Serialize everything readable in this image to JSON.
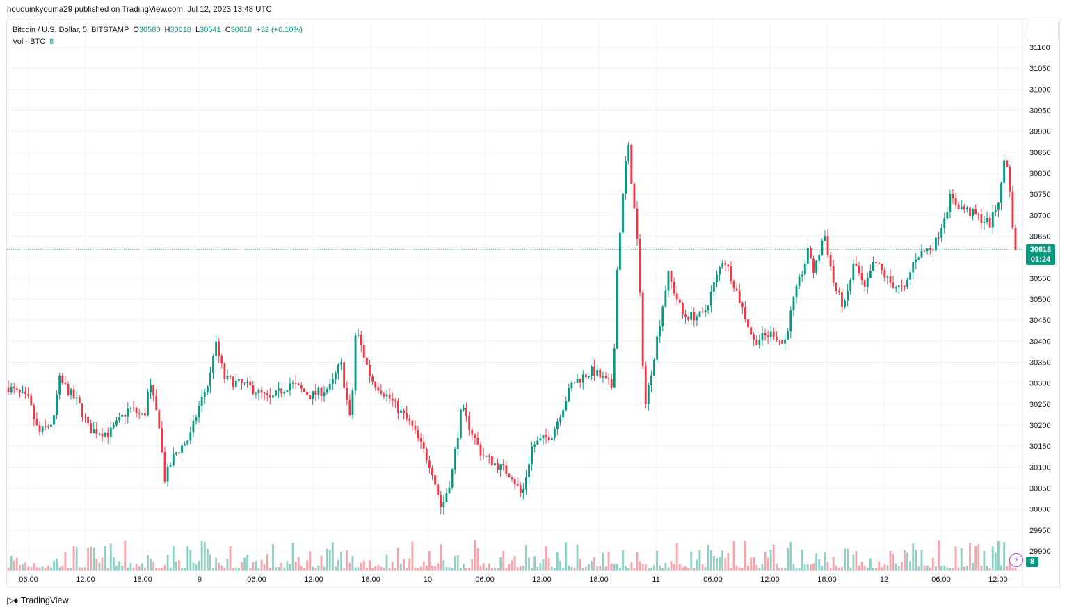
{
  "header": {
    "published_text": "hououinkyouma29 published on TradingView.com, Jul 12, 2023 13:48 UTC"
  },
  "legend": {
    "symbol": "Bitcoin / U.S. Dollar, 5, BITSTAMP",
    "open_label": "O",
    "open": "30580",
    "high_label": "H",
    "high": "30618",
    "low_label": "L",
    "low": "30541",
    "close_label": "C",
    "close": "30618",
    "change": "+32 (+0.10%)",
    "volume_label": "Vol · BTC",
    "volume": "8"
  },
  "price_tag": {
    "price": "30618",
    "countdown": "01:24"
  },
  "volume_tag": "8",
  "footer": {
    "brand": "TradingView",
    "icon": "tradingview-logo-icon"
  },
  "colors": {
    "up": "#089981",
    "down": "#f23645",
    "grid": "#f0f3fa",
    "text": "#131722"
  },
  "chart_data": {
    "type": "candlestick",
    "title": "Bitcoin / U.S. Dollar, 5, BITSTAMP",
    "y_ticks": [
      29900,
      29950,
      30000,
      30050,
      30100,
      30150,
      30200,
      30250,
      30300,
      30350,
      30400,
      30450,
      30500,
      30550,
      30600,
      30650,
      30700,
      30750,
      30800,
      30850,
      30900,
      30950,
      31000,
      31050,
      31100
    ],
    "ylim": [
      29865,
      31135
    ],
    "x_ticks": [
      "06:00",
      "12:00",
      "18:00",
      "9",
      "06:00",
      "12:00",
      "18:00",
      "10",
      "06:00",
      "12:00",
      "18:00",
      "11",
      "06:00",
      "12:00",
      "18:00",
      "12",
      "06:00",
      "12:00"
    ],
    "last_price": 30618,
    "price_path_estimate": [
      [
        0,
        30290
      ],
      [
        0.02,
        30260
      ],
      [
        0.03,
        30180
      ],
      [
        0.045,
        30210
      ],
      [
        0.05,
        30310
      ],
      [
        0.07,
        30250
      ],
      [
        0.08,
        30190
      ],
      [
        0.1,
        30180
      ],
      [
        0.12,
        30240
      ],
      [
        0.135,
        30220
      ],
      [
        0.14,
        30300
      ],
      [
        0.15,
        30200
      ],
      [
        0.155,
        30070
      ],
      [
        0.165,
        30130
      ],
      [
        0.18,
        30170
      ],
      [
        0.19,
        30250
      ],
      [
        0.2,
        30310
      ],
      [
        0.205,
        30400
      ],
      [
        0.215,
        30310
      ],
      [
        0.24,
        30290
      ],
      [
        0.26,
        30260
      ],
      [
        0.28,
        30300
      ],
      [
        0.3,
        30270
      ],
      [
        0.32,
        30290
      ],
      [
        0.33,
        30350
      ],
      [
        0.34,
        30200
      ],
      [
        0.345,
        30430
      ],
      [
        0.36,
        30310
      ],
      [
        0.38,
        30260
      ],
      [
        0.4,
        30200
      ],
      [
        0.41,
        30150
      ],
      [
        0.42,
        30100
      ],
      [
        0.43,
        30000
      ],
      [
        0.44,
        30080
      ],
      [
        0.45,
        30240
      ],
      [
        0.47,
        30130
      ],
      [
        0.5,
        30080
      ],
      [
        0.51,
        30030
      ],
      [
        0.52,
        30150
      ],
      [
        0.54,
        30180
      ],
      [
        0.56,
        30300
      ],
      [
        0.58,
        30330
      ],
      [
        0.6,
        30290
      ],
      [
        0.605,
        30600
      ],
      [
        0.615,
        30880
      ],
      [
        0.625,
        30620
      ],
      [
        0.632,
        30240
      ],
      [
        0.645,
        30420
      ],
      [
        0.655,
        30560
      ],
      [
        0.67,
        30460
      ],
      [
        0.69,
        30460
      ],
      [
        0.71,
        30600
      ],
      [
        0.72,
        30540
      ],
      [
        0.74,
        30400
      ],
      [
        0.76,
        30420
      ],
      [
        0.77,
        30390
      ],
      [
        0.78,
        30500
      ],
      [
        0.795,
        30620
      ],
      [
        0.8,
        30560
      ],
      [
        0.81,
        30660
      ],
      [
        0.82,
        30530
      ],
      [
        0.83,
        30480
      ],
      [
        0.84,
        30590
      ],
      [
        0.85,
        30520
      ],
      [
        0.86,
        30590
      ],
      [
        0.875,
        30540
      ],
      [
        0.89,
        30520
      ],
      [
        0.9,
        30600
      ],
      [
        0.92,
        30630
      ],
      [
        0.935,
        30740
      ],
      [
        0.945,
        30720
      ],
      [
        0.96,
        30700
      ],
      [
        0.975,
        30680
      ],
      [
        0.985,
        30750
      ],
      [
        0.99,
        30860
      ],
      [
        1,
        30610
      ]
    ]
  }
}
